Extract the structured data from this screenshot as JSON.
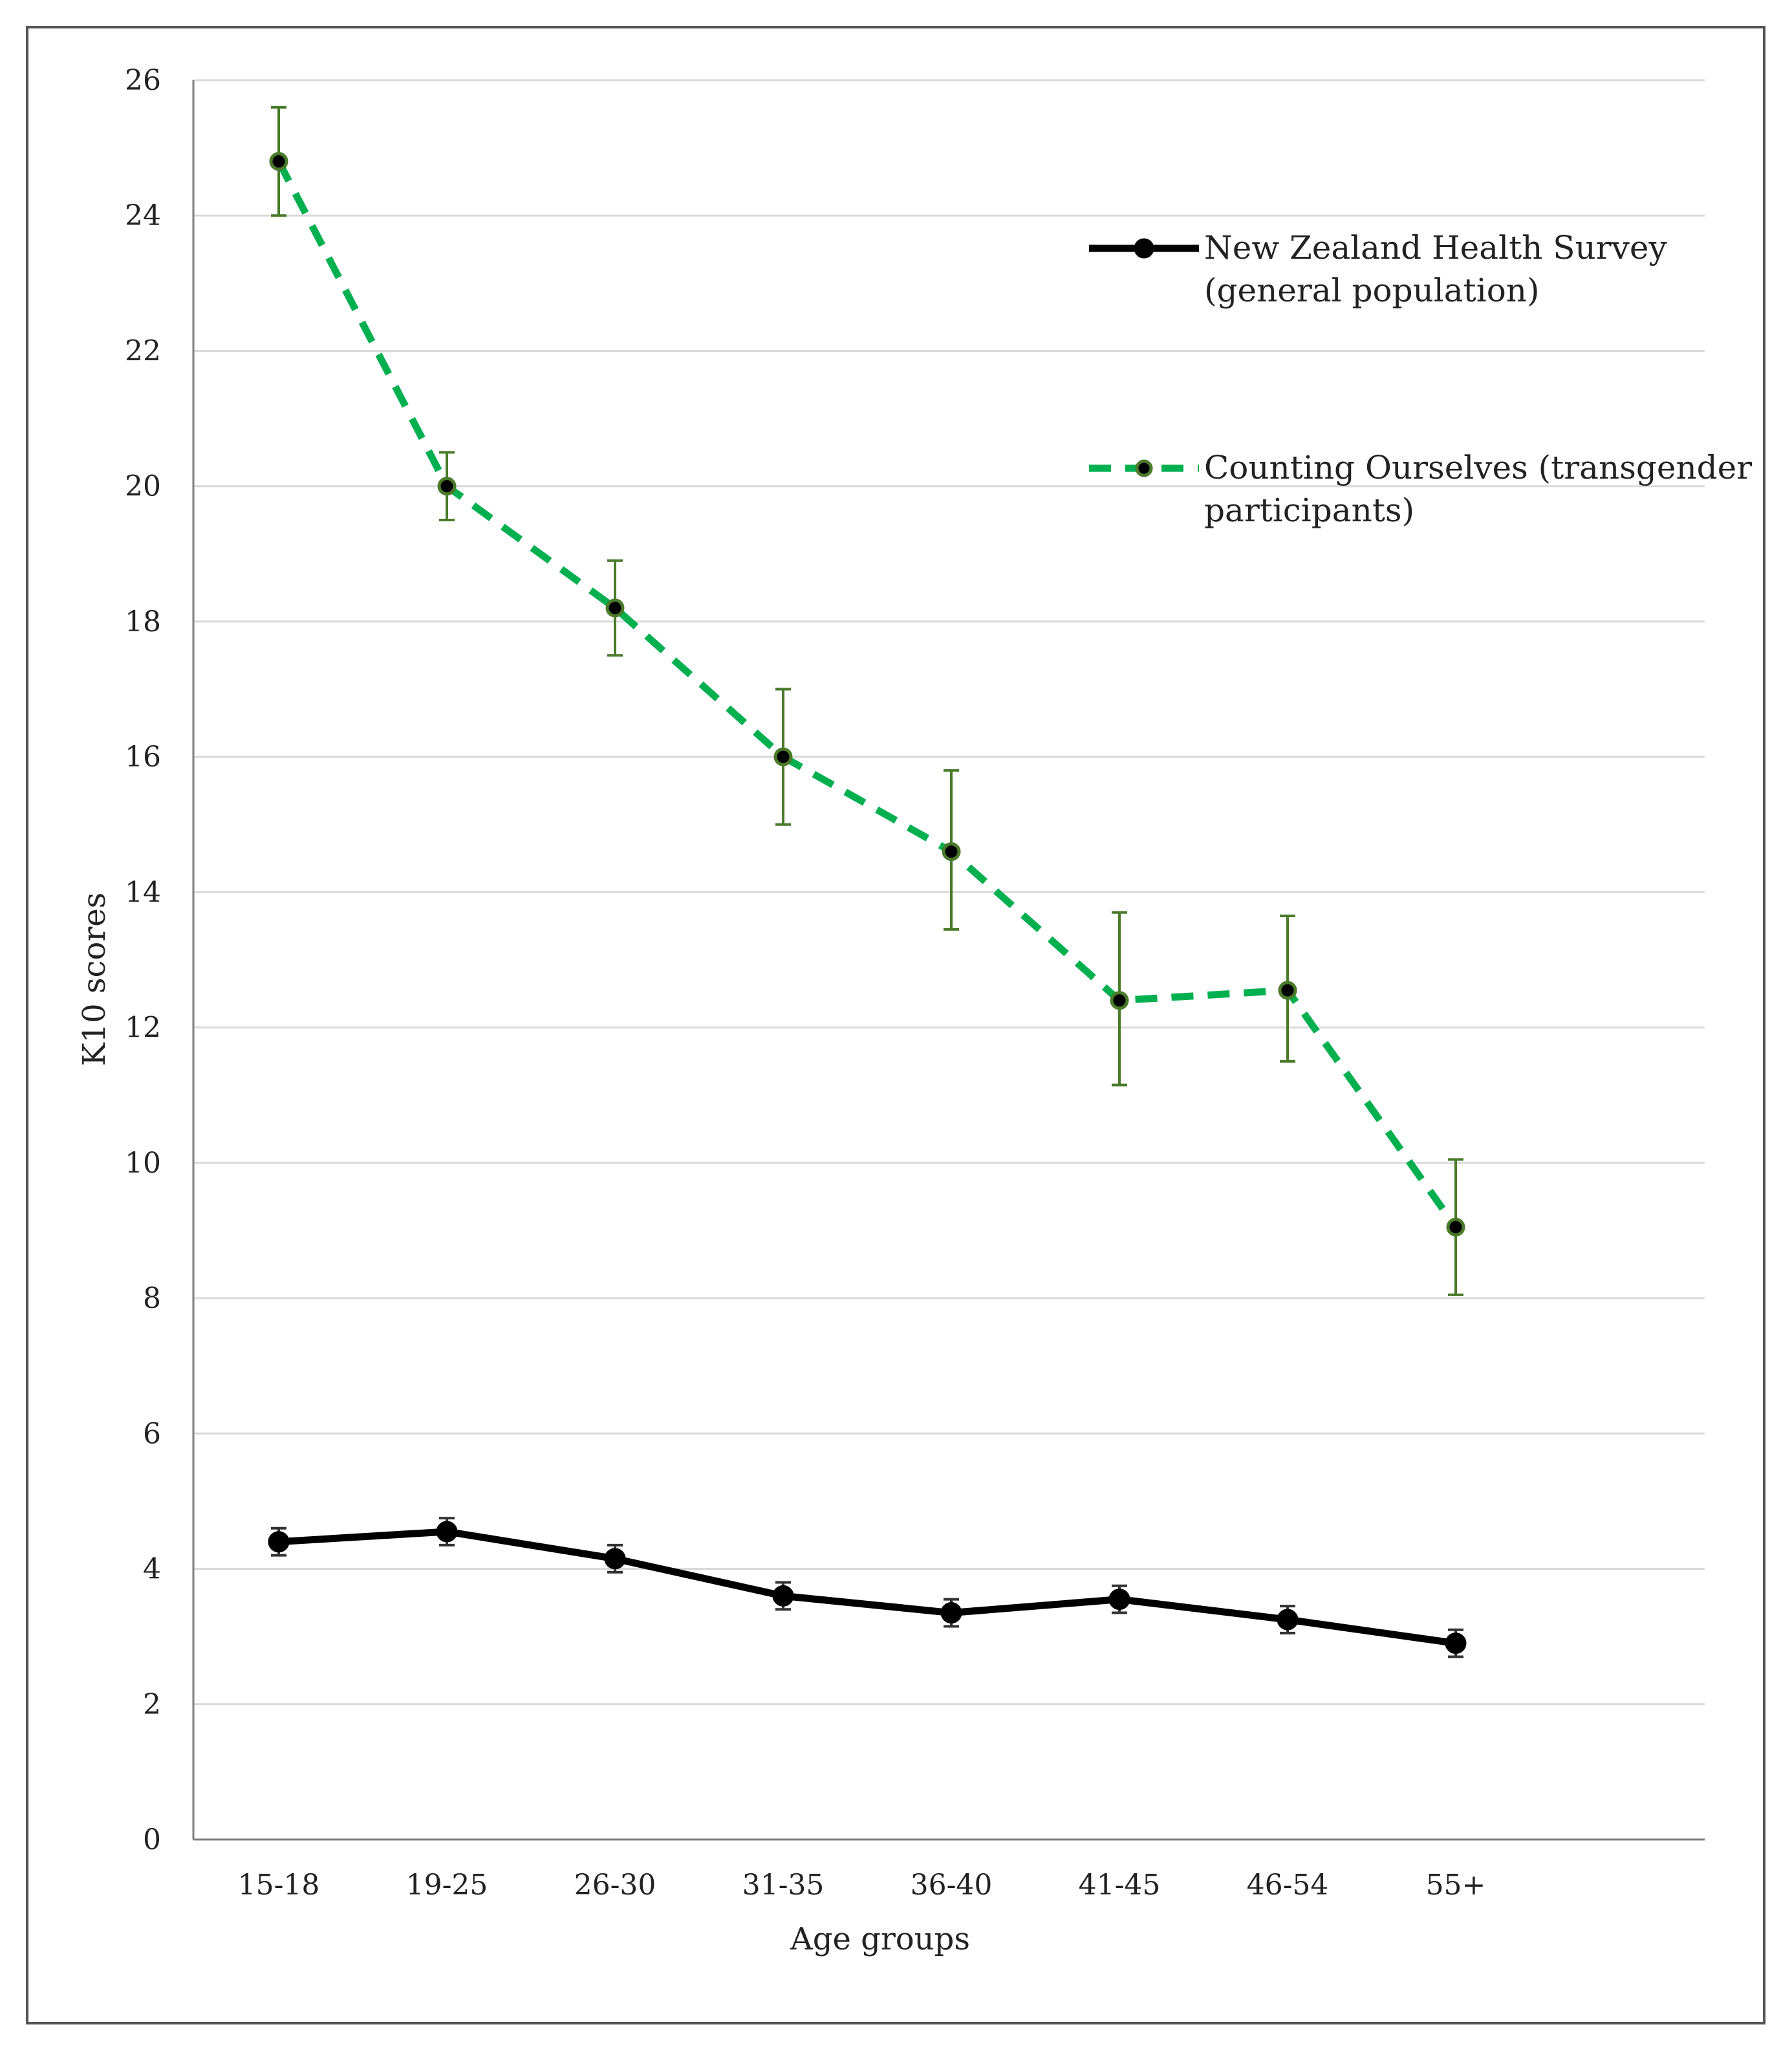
{
  "chart_data": {
    "type": "line",
    "title": "",
    "xlabel": "Age groups",
    "ylabel": "K10 scores",
    "ylim": [
      0,
      26
    ],
    "yticks": [
      "0",
      "2",
      "4",
      "6",
      "8",
      "10",
      "12",
      "14",
      "16",
      "18",
      "20",
      "22",
      "24",
      "26"
    ],
    "categories": [
      "15-18",
      "19-25",
      "26-30",
      "31-35",
      "36-40",
      "41-45",
      "46-54",
      "55+"
    ],
    "grid": true,
    "legend_position": "top-right",
    "series": [
      {
        "name": "New Zealand Health Survey (general population)",
        "legend_lines": [
          "New Zealand Health Survey",
          "(general population)"
        ],
        "values": [
          4.4,
          4.55,
          4.15,
          3.6,
          3.35,
          3.55,
          3.25,
          2.9
        ],
        "error_low": [
          4.2,
          4.35,
          3.95,
          3.4,
          3.15,
          3.35,
          3.05,
          2.7
        ],
        "error_high": [
          4.6,
          4.75,
          4.35,
          3.8,
          3.55,
          3.75,
          3.45,
          3.1
        ],
        "color": "#000000",
        "error_color": "#333333",
        "style": "solid"
      },
      {
        "name": "Counting Ourselves (transgender participants)",
        "legend_lines": [
          "Counting Ourselves (transgender",
          "participants)"
        ],
        "values": [
          24.8,
          20.0,
          18.2,
          16.0,
          14.6,
          12.4,
          12.55,
          9.05
        ],
        "error_low": [
          24.0,
          19.5,
          17.5,
          15.0,
          13.45,
          11.15,
          11.5,
          8.05
        ],
        "error_high": [
          25.6,
          20.5,
          18.9,
          17.0,
          15.8,
          13.7,
          13.65,
          10.05
        ],
        "color": "#00b050",
        "error_color": "#4a7a2a",
        "style": "dashed"
      }
    ]
  }
}
